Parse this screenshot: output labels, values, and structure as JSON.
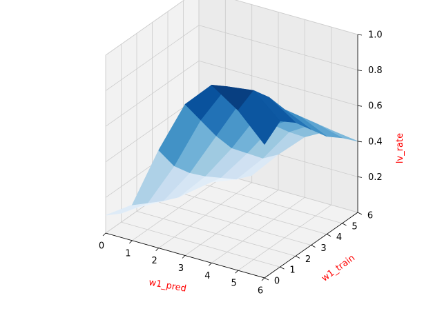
{
  "chart_data": {
    "type": "surface3d",
    "title": "",
    "xlabel": "w1_pred",
    "ylabel": "w1_train",
    "zlabel": "lv_rate",
    "axis_label_color": "#ff0000",
    "colormap": "Blues",
    "grid": true,
    "x": [
      0,
      1,
      2,
      3,
      4,
      5,
      6
    ],
    "y": [
      0,
      1,
      2,
      3,
      4,
      5,
      6
    ],
    "xticks": [
      "0",
      "1",
      "2",
      "3",
      "4",
      "5",
      "6"
    ],
    "yticks": [
      "0",
      "1",
      "2",
      "3",
      "4",
      "5",
      "6"
    ],
    "zticks": [
      "0.2",
      "0.4",
      "0.6",
      "0.8",
      "1.0"
    ],
    "xlim": [
      0,
      6
    ],
    "ylim": [
      0,
      6
    ],
    "zlim": [
      0,
      1.0
    ],
    "z": [
      [
        0.1,
        0.05,
        0.02,
        0.01,
        0.01,
        0.0,
        0.0
      ],
      [
        0.2,
        0.15,
        0.1,
        0.06,
        0.04,
        0.02,
        0.0
      ],
      [
        0.55,
        0.4,
        0.3,
        0.22,
        0.15,
        0.08,
        0.04
      ],
      [
        0.85,
        0.7,
        0.55,
        0.42,
        0.33,
        0.24,
        0.2
      ],
      [
        1.0,
        0.93,
        0.8,
        0.65,
        0.53,
        0.43,
        0.34
      ],
      [
        0.9,
        0.95,
        0.85,
        0.72,
        0.62,
        0.52,
        0.42
      ],
      [
        0.75,
        0.82,
        0.75,
        0.65,
        0.55,
        0.48,
        0.4
      ]
    ]
  }
}
